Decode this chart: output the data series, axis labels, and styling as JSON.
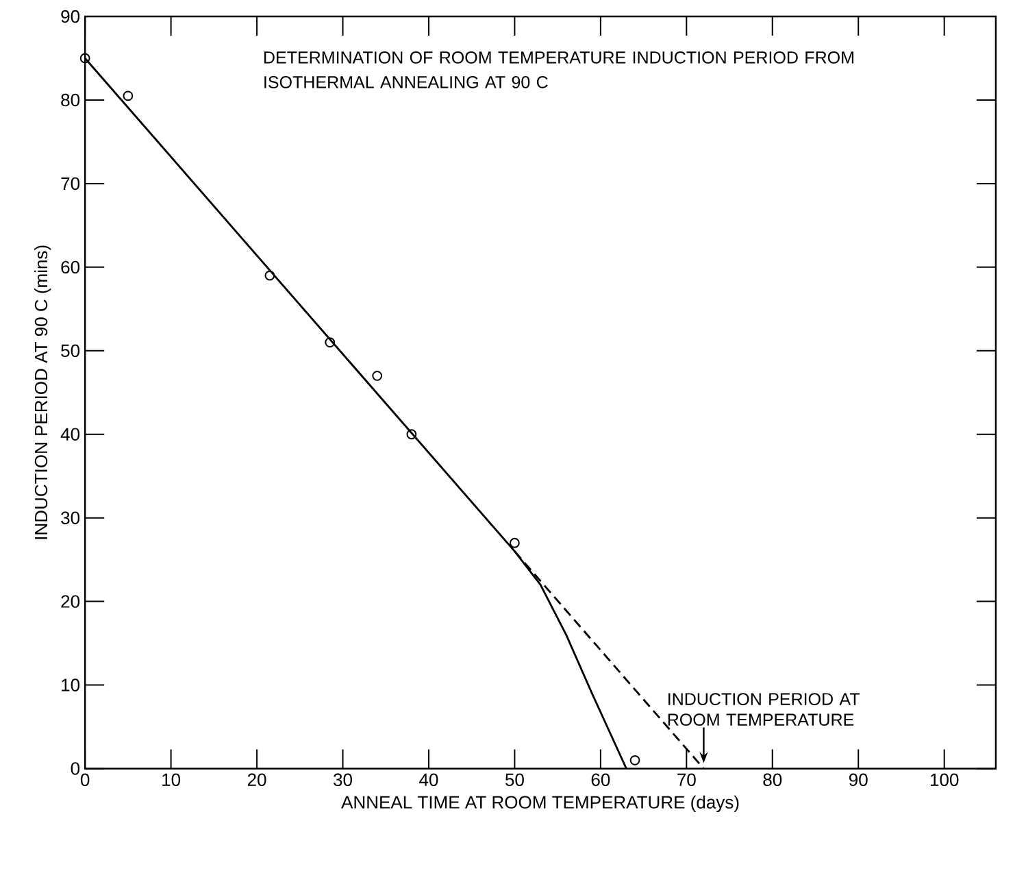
{
  "chart_data": {
    "type": "scatter",
    "title": "DETERMINATION OF ROOM TEMPERATURE INDUCTION PERIOD FROM ISOTHERMAL ANNEALING AT 90 C",
    "xlabel": "ANNEAL TIME AT ROOM TEMPERATURE  (days)",
    "ylabel": "INDUCTION PERIOD AT 90 C  (mins)",
    "xlim": [
      0,
      106
    ],
    "ylim": [
      0,
      90
    ],
    "xticks": [
      0,
      10,
      20,
      30,
      40,
      50,
      60,
      70,
      80,
      90,
      100
    ],
    "yticks": [
      0,
      10,
      20,
      30,
      40,
      50,
      60,
      70,
      80,
      90
    ],
    "grid": false,
    "series": [
      {
        "marker": "circle",
        "color": "#000000",
        "x": [
          0,
          5,
          21.5,
          28.5,
          34,
          38,
          50,
          64
        ],
        "values": [
          85,
          80.5,
          59,
          51,
          47,
          40,
          27,
          1
        ]
      },
      {
        "type": "line",
        "marker": "none",
        "line_style": "solid",
        "color": "#000000",
        "x": [
          0,
          50,
          53,
          56,
          59,
          63
        ],
        "values": [
          85,
          26,
          22,
          16,
          9,
          0
        ]
      },
      {
        "type": "line",
        "marker": "none",
        "line_style": "dashed",
        "color": "#000000",
        "x": [
          50,
          72
        ],
        "values": [
          26,
          0
        ]
      }
    ],
    "annotations": [
      {
        "text": "INDUCTION PERIOD AT ROOM TEMPERATURE",
        "x": 72,
        "y": 0
      }
    ]
  }
}
